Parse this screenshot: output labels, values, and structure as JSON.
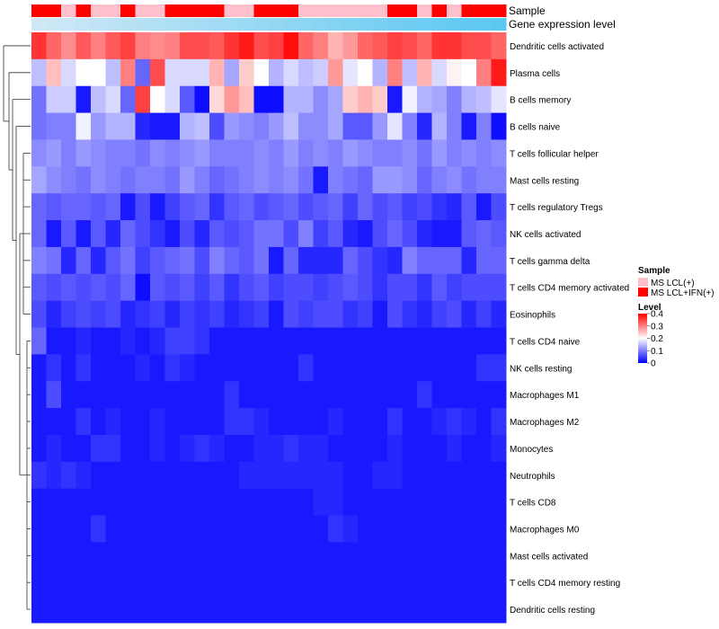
{
  "chart_data": {
    "type": "heatmap",
    "title": "",
    "annotation_tracks": [
      "Sample",
      "Gene expression level"
    ],
    "sample_labels": [
      "MS LCL(+)",
      "MS LCL+IFN(+)"
    ],
    "sample_groups": [
      "MS LCL+IFN(+)",
      "MS LCL+IFN(+)",
      "MS LCL(+)",
      "MS LCL+IFN(+)",
      "MS LCL(+)",
      "MS LCL(+)",
      "MS LCL+IFN(+)",
      "MS LCL(+)",
      "MS LCL(+)",
      "MS LCL+IFN(+)",
      "MS LCL+IFN(+)",
      "MS LCL+IFN(+)",
      "MS LCL+IFN(+)",
      "MS LCL(+)",
      "MS LCL(+)",
      "MS LCL+IFN(+)",
      "MS LCL+IFN(+)",
      "MS LCL+IFN(+)",
      "MS LCL(+)",
      "MS LCL(+)",
      "MS LCL(+)",
      "MS LCL(+)",
      "MS LCL(+)",
      "MS LCL(+)",
      "MS LCL+IFN(+)",
      "MS LCL+IFN(+)",
      "MS LCL(+)",
      "MS LCL+IFN(+)",
      "MS LCL(+)",
      "MS LCL+IFN(+)",
      "MS LCL+IFN(+)",
      "MS LCL+IFN(+)"
    ],
    "rows": [
      "Dendritic cells activated",
      "Plasma cells",
      "B cells memory",
      "B cells naive",
      "T cells follicular helper",
      "Mast cells resting",
      "T cells regulatory  Tregs",
      "NK cells activated",
      "T cells gamma delta",
      "T cells CD4 memory activated",
      "Eosinophils",
      "T cells CD4 naive",
      "NK cells resting",
      "Macrophages M1",
      "Macrophages M2",
      "Monocytes",
      "Neutrophils",
      "T cells CD8",
      "Macrophages M0",
      "Mast cells activated",
      "T cells CD4 memory resting",
      "Dendritic cells resting"
    ],
    "legend": {
      "sample_title": "Sample",
      "level_title": "Level",
      "ticks": [
        "0.4",
        "0.3",
        "0.2",
        "0.1",
        "0"
      ],
      "tick_values": [
        0.4,
        0.3,
        0.2,
        0.1,
        0
      ],
      "range": [
        0,
        0.4
      ]
    },
    "colors": {
      "low": "#0000ff",
      "mid": "#ffffff",
      "high": "#ff0000",
      "ms_lcl": "#ffc0cb",
      "ms_lcl_ifn": "#ff0000",
      "expr_low": "#cfe8f5",
      "expr_high": "#5bc8f2",
      "dendrogram": "#333333"
    },
    "values": [
      [
        0.36,
        0.32,
        0.29,
        0.33,
        0.3,
        0.33,
        0.35,
        0.3,
        0.29,
        0.3,
        0.34,
        0.34,
        0.33,
        0.36,
        0.38,
        0.34,
        0.35,
        0.39,
        0.32,
        0.3,
        0.26,
        0.28,
        0.32,
        0.33,
        0.35,
        0.34,
        0.32,
        0.36,
        0.36,
        0.34,
        0.34,
        0.32
      ],
      [
        0.15,
        0.25,
        0.17,
        0.2,
        0.2,
        0.15,
        0.3,
        0.08,
        0.34,
        0.17,
        0.17,
        0.17,
        0.26,
        0.13,
        0.24,
        0.2,
        0.14,
        0.17,
        0.15,
        0.16,
        0.28,
        0.18,
        0.2,
        0.14,
        0.3,
        0.15,
        0.26,
        0.17,
        0.21,
        0.2,
        0.3,
        0.38
      ],
      [
        0.09,
        0.16,
        0.16,
        0.02,
        0.15,
        0.17,
        0.08,
        0.35,
        0.2,
        0.17,
        0.07,
        0.01,
        0.23,
        0.28,
        0.25,
        0.01,
        0.01,
        0.14,
        0.14,
        0.11,
        0.13,
        0.24,
        0.26,
        0.24,
        0.02,
        0.19,
        0.14,
        0.13,
        0.1,
        0.14,
        0.15,
        0.18
      ],
      [
        0.09,
        0.1,
        0.1,
        0.19,
        0.12,
        0.14,
        0.14,
        0.03,
        0.02,
        0.02,
        0.14,
        0.15,
        0.06,
        0.12,
        0.11,
        0.1,
        0.12,
        0.15,
        0.11,
        0.11,
        0.13,
        0.07,
        0.07,
        0.12,
        0.18,
        0.1,
        0.03,
        0.14,
        0.1,
        0.02,
        0.1,
        0.01
      ],
      [
        0.11,
        0.12,
        0.1,
        0.12,
        0.11,
        0.1,
        0.1,
        0.09,
        0.11,
        0.1,
        0.11,
        0.12,
        0.1,
        0.1,
        0.1,
        0.11,
        0.1,
        0.12,
        0.1,
        0.11,
        0.1,
        0.12,
        0.11,
        0.1,
        0.1,
        0.11,
        0.09,
        0.12,
        0.1,
        0.11,
        0.1,
        0.11
      ],
      [
        0.13,
        0.11,
        0.1,
        0.09,
        0.11,
        0.1,
        0.09,
        0.1,
        0.1,
        0.09,
        0.12,
        0.1,
        0.08,
        0.09,
        0.1,
        0.11,
        0.1,
        0.11,
        0.09,
        0.02,
        0.1,
        0.09,
        0.08,
        0.12,
        0.12,
        0.11,
        0.08,
        0.1,
        0.11,
        0.09,
        0.1,
        0.1
      ],
      [
        0.08,
        0.07,
        0.08,
        0.08,
        0.07,
        0.08,
        0.02,
        0.06,
        0.02,
        0.05,
        0.07,
        0.08,
        0.04,
        0.07,
        0.08,
        0.06,
        0.07,
        0.08,
        0.06,
        0.07,
        0.08,
        0.05,
        0.08,
        0.06,
        0.07,
        0.05,
        0.06,
        0.04,
        0.03,
        0.07,
        0.02,
        0.06
      ],
      [
        0.08,
        0.02,
        0.07,
        0.02,
        0.07,
        0.03,
        0.08,
        0.06,
        0.04,
        0.02,
        0.06,
        0.03,
        0.07,
        0.06,
        0.07,
        0.09,
        0.09,
        0.06,
        0.1,
        0.05,
        0.07,
        0.03,
        0.02,
        0.06,
        0.08,
        0.06,
        0.03,
        0.02,
        0.02,
        0.07,
        0.08,
        0.07
      ],
      [
        0.1,
        0.09,
        0.03,
        0.08,
        0.03,
        0.07,
        0.09,
        0.05,
        0.07,
        0.08,
        0.09,
        0.06,
        0.1,
        0.08,
        0.07,
        0.09,
        0.02,
        0.08,
        0.03,
        0.03,
        0.03,
        0.08,
        0.06,
        0.04,
        0.03,
        0.1,
        0.08,
        0.08,
        0.08,
        0.03,
        0.08,
        0.08
      ],
      [
        0.07,
        0.06,
        0.07,
        0.06,
        0.07,
        0.06,
        0.08,
        0.01,
        0.07,
        0.06,
        0.07,
        0.05,
        0.07,
        0.04,
        0.06,
        0.07,
        0.05,
        0.06,
        0.06,
        0.05,
        0.06,
        0.07,
        0.06,
        0.04,
        0.06,
        0.06,
        0.04,
        0.07,
        0.05,
        0.06,
        0.06,
        0.06
      ],
      [
        0.06,
        0.03,
        0.05,
        0.06,
        0.05,
        0.06,
        0.03,
        0.04,
        0.05,
        0.03,
        0.05,
        0.04,
        0.05,
        0.03,
        0.04,
        0.05,
        0.02,
        0.06,
        0.05,
        0.06,
        0.06,
        0.04,
        0.05,
        0.02,
        0.06,
        0.04,
        0.03,
        0.05,
        0.06,
        0.03,
        0.05,
        0.03
      ],
      [
        0.08,
        0.02,
        0.02,
        0.03,
        0.02,
        0.02,
        0.03,
        0.02,
        0.03,
        0.05,
        0.05,
        0.04,
        0.02,
        0.02,
        0.02,
        0.02,
        0.02,
        0.02,
        0.02,
        0.02,
        0.02,
        0.02,
        0.02,
        0.02,
        0.02,
        0.02,
        0.02,
        0.02,
        0.02,
        0.02,
        0.02,
        0.02
      ],
      [
        0.02,
        0.04,
        0.02,
        0.04,
        0.02,
        0.02,
        0.02,
        0.03,
        0.02,
        0.04,
        0.03,
        0.02,
        0.02,
        0.02,
        0.02,
        0.02,
        0.02,
        0.02,
        0.04,
        0.02,
        0.02,
        0.02,
        0.02,
        0.02,
        0.02,
        0.02,
        0.02,
        0.02,
        0.02,
        0.02,
        0.04,
        0.04
      ],
      [
        0.02,
        0.06,
        0.02,
        0.02,
        0.02,
        0.02,
        0.02,
        0.02,
        0.02,
        0.02,
        0.02,
        0.02,
        0.02,
        0.04,
        0.02,
        0.02,
        0.02,
        0.02,
        0.02,
        0.02,
        0.02,
        0.02,
        0.02,
        0.02,
        0.02,
        0.02,
        0.04,
        0.02,
        0.02,
        0.02,
        0.02,
        0.02
      ],
      [
        0.02,
        0.02,
        0.02,
        0.04,
        0.02,
        0.03,
        0.02,
        0.02,
        0.03,
        0.02,
        0.02,
        0.02,
        0.02,
        0.04,
        0.04,
        0.03,
        0.02,
        0.02,
        0.02,
        0.02,
        0.03,
        0.02,
        0.02,
        0.02,
        0.04,
        0.02,
        0.02,
        0.03,
        0.04,
        0.03,
        0.02,
        0.04
      ],
      [
        0.02,
        0.03,
        0.02,
        0.02,
        0.04,
        0.04,
        0.02,
        0.02,
        0.03,
        0.02,
        0.03,
        0.04,
        0.03,
        0.02,
        0.02,
        0.03,
        0.03,
        0.04,
        0.03,
        0.03,
        0.02,
        0.02,
        0.02,
        0.02,
        0.03,
        0.02,
        0.02,
        0.02,
        0.03,
        0.02,
        0.02,
        0.03
      ],
      [
        0.04,
        0.03,
        0.04,
        0.03,
        0.02,
        0.02,
        0.02,
        0.02,
        0.02,
        0.02,
        0.02,
        0.02,
        0.02,
        0.02,
        0.03,
        0.03,
        0.03,
        0.03,
        0.03,
        0.03,
        0.03,
        0.02,
        0.02,
        0.03,
        0.03,
        0.02,
        0.02,
        0.02,
        0.02,
        0.02,
        0.02,
        0.02
      ],
      [
        0.02,
        0.02,
        0.02,
        0.02,
        0.02,
        0.02,
        0.02,
        0.02,
        0.02,
        0.02,
        0.02,
        0.02,
        0.02,
        0.02,
        0.02,
        0.02,
        0.02,
        0.02,
        0.02,
        0.03,
        0.03,
        0.02,
        0.02,
        0.02,
        0.02,
        0.02,
        0.02,
        0.02,
        0.02,
        0.02,
        0.02,
        0.02
      ],
      [
        0.02,
        0.02,
        0.02,
        0.02,
        0.04,
        0.02,
        0.02,
        0.02,
        0.02,
        0.02,
        0.02,
        0.02,
        0.02,
        0.02,
        0.02,
        0.02,
        0.02,
        0.02,
        0.02,
        0.02,
        0.04,
        0.03,
        0.02,
        0.02,
        0.02,
        0.02,
        0.02,
        0.02,
        0.02,
        0.02,
        0.02,
        0.02
      ],
      [
        0.02,
        0.02,
        0.02,
        0.02,
        0.02,
        0.02,
        0.02,
        0.02,
        0.02,
        0.02,
        0.02,
        0.02,
        0.02,
        0.02,
        0.02,
        0.02,
        0.02,
        0.02,
        0.02,
        0.02,
        0.02,
        0.02,
        0.02,
        0.02,
        0.02,
        0.02,
        0.02,
        0.02,
        0.02,
        0.02,
        0.02,
        0.02
      ],
      [
        0.02,
        0.02,
        0.02,
        0.02,
        0.02,
        0.02,
        0.02,
        0.02,
        0.02,
        0.02,
        0.02,
        0.02,
        0.02,
        0.02,
        0.02,
        0.02,
        0.02,
        0.02,
        0.02,
        0.02,
        0.02,
        0.02,
        0.02,
        0.02,
        0.02,
        0.02,
        0.02,
        0.02,
        0.02,
        0.02,
        0.02,
        0.02
      ],
      [
        0.02,
        0.02,
        0.02,
        0.02,
        0.02,
        0.02,
        0.02,
        0.02,
        0.02,
        0.02,
        0.02,
        0.02,
        0.02,
        0.02,
        0.02,
        0.02,
        0.02,
        0.02,
        0.02,
        0.02,
        0.02,
        0.02,
        0.02,
        0.02,
        0.02,
        0.02,
        0.02,
        0.02,
        0.02,
        0.02,
        0.02,
        0.02
      ]
    ]
  }
}
